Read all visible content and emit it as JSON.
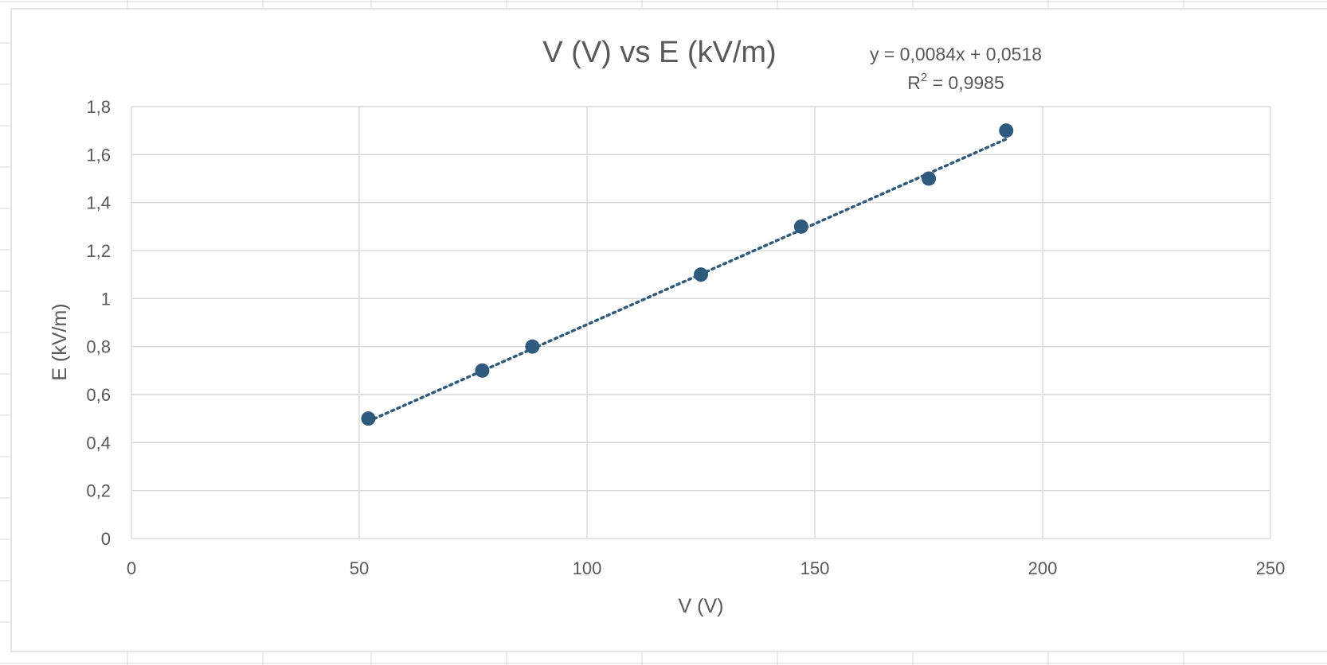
{
  "chart_data": {
    "type": "scatter",
    "title": "V (V) vs E (kV/m)",
    "xlabel": "V (V)",
    "ylabel": "E (kV/m)",
    "xlim": [
      0,
      250
    ],
    "ylim": [
      0,
      1.8
    ],
    "x_ticks": [
      "0",
      "50",
      "100",
      "150",
      "200",
      "250"
    ],
    "y_ticks": [
      "0",
      "0,2",
      "0,4",
      "0,6",
      "0,8",
      "1",
      "1,2",
      "1,4",
      "1,6",
      "1,8"
    ],
    "grid": true,
    "legend": false,
    "series": [
      {
        "x": [
          52,
          77,
          88,
          125,
          147,
          175,
          192
        ],
        "y": [
          0.5,
          0.7,
          0.8,
          1.1,
          1.3,
          1.5,
          1.7
        ],
        "color": "#2e5a7e",
        "marker": "circle"
      }
    ],
    "trendline": {
      "type": "linear",
      "slope": 0.0084,
      "intercept": 0.0518,
      "style": "dotted",
      "color": "#2e5a7e",
      "equation": "y = 0,0084x + 0,0518",
      "r2_prefix": "R",
      "r2_exponent": "2",
      "r2_value": " = 0,9985"
    }
  }
}
